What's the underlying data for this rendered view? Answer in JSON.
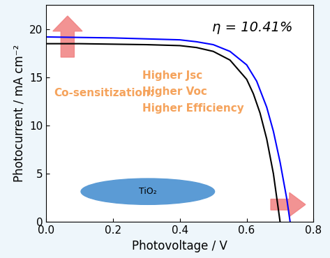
{
  "chart_data": {
    "type": "line",
    "x_label": "Photovoltage / V",
    "y_label": "Photocurrent / mA cm⁻²",
    "xlim": [
      0,
      0.8
    ],
    "xticks": [
      0.0,
      0.2,
      0.4,
      0.6,
      0.8
    ],
    "ylim": [
      0,
      22.5
    ],
    "yticks": [
      0,
      5,
      10,
      15,
      20
    ],
    "grid": false,
    "annotations": {
      "efficiency": "η = 10.41%",
      "heading": "Co-sensitization:",
      "points": [
        "Higher Jsc",
        "Higher Voc",
        "Higher Efficiency"
      ],
      "substrate": "TiO₂"
    },
    "series": [
      {
        "color": "#000000",
        "x": [
          0.0,
          0.1,
          0.2,
          0.3,
          0.4,
          0.45,
          0.5,
          0.55,
          0.6,
          0.62,
          0.64,
          0.66,
          0.68,
          0.7
        ],
        "values": [
          18.5,
          18.5,
          18.45,
          18.4,
          18.3,
          18.1,
          17.7,
          16.8,
          14.8,
          13.3,
          11.3,
          8.6,
          5.0,
          0.0
        ]
      },
      {
        "color": "#0000ff",
        "x": [
          0.0,
          0.1,
          0.2,
          0.3,
          0.4,
          0.45,
          0.5,
          0.55,
          0.6,
          0.63,
          0.66,
          0.68,
          0.7,
          0.72,
          0.73
        ],
        "values": [
          19.2,
          19.15,
          19.1,
          19.0,
          18.9,
          18.7,
          18.4,
          17.7,
          16.3,
          14.6,
          11.9,
          9.4,
          6.2,
          2.4,
          0.0
        ]
      }
    ]
  }
}
